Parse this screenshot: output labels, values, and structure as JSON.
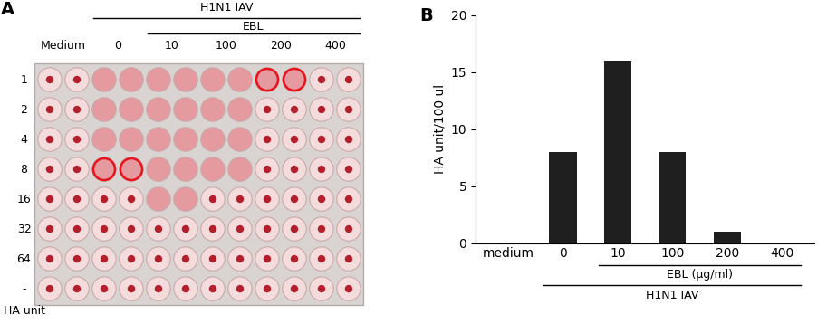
{
  "panel_labels": [
    "A",
    "B"
  ],
  "plate": {
    "top_brackets": [
      {
        "label": "H1N1 IAV",
        "groups": [
          "0",
          "10",
          "100",
          "200",
          "400"
        ]
      },
      {
        "label": "EBL",
        "groups": [
          "10",
          "100",
          "200",
          "400"
        ]
      }
    ],
    "groups": [
      "Medium",
      "0",
      "10",
      "100",
      "200",
      "400"
    ],
    "rows": [
      "1",
      "2",
      "4",
      "8",
      "16",
      "32",
      "64",
      "-"
    ],
    "row_axis_label": "HA unit",
    "agglutination": [
      [
        false,
        false,
        true,
        true,
        true,
        true,
        true,
        true,
        true,
        true,
        false,
        false
      ],
      [
        false,
        false,
        true,
        true,
        true,
        true,
        true,
        true,
        false,
        false,
        false,
        false
      ],
      [
        false,
        false,
        true,
        true,
        true,
        true,
        true,
        true,
        false,
        false,
        false,
        false
      ],
      [
        false,
        false,
        true,
        true,
        true,
        true,
        true,
        true,
        false,
        false,
        false,
        false
      ],
      [
        false,
        false,
        false,
        false,
        true,
        true,
        false,
        false,
        false,
        false,
        false,
        false
      ],
      [
        false,
        false,
        false,
        false,
        false,
        false,
        false,
        false,
        false,
        false,
        false,
        false
      ],
      [
        false,
        false,
        false,
        false,
        false,
        false,
        false,
        false,
        false,
        false,
        false,
        false
      ],
      [
        false,
        false,
        false,
        false,
        false,
        false,
        false,
        false,
        false,
        false,
        false,
        false
      ]
    ],
    "circled": [
      {
        "row": "1",
        "group": "200"
      },
      {
        "row": "8",
        "group": "0"
      }
    ]
  },
  "chart_data": {
    "type": "bar",
    "categories": [
      "medium",
      "0",
      "10",
      "100",
      "200",
      "400"
    ],
    "values": [
      0,
      8,
      16,
      8,
      1,
      0
    ],
    "color": "#1f1f1f",
    "ylabel": "HA unit/100 ul",
    "ylim": [
      0,
      20
    ],
    "yticks": [
      0,
      5,
      10,
      15,
      20
    ],
    "x_brackets": [
      {
        "label": "EBL (µg/ml)",
        "categories": [
          "10",
          "100",
          "200",
          "400"
        ]
      },
      {
        "label": "H1N1 IAV",
        "categories": [
          "0",
          "10",
          "100",
          "200",
          "400"
        ]
      }
    ]
  }
}
